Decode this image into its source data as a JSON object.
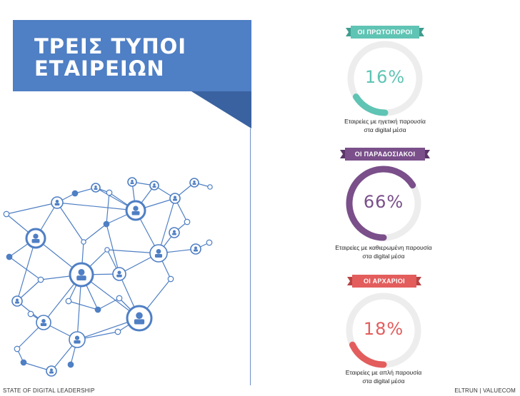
{
  "title": {
    "line1": "ΤΡΕΙΣ ΤΥΠΟΙ",
    "line2": "ΕΤΑΙΡΕΙΩΝ"
  },
  "colors": {
    "banner": "#4f7fc4",
    "banner_dark": "#3a62a0",
    "network": "#4f7fc4",
    "pioneers": "#5fc4b4",
    "traditional": "#7a4f8a",
    "archaic": "#e35d5d",
    "ring_track": "#ededed"
  },
  "categories": [
    {
      "label": "ΟΙ ΠΡΩΤΟΠΟΡΟΙ",
      "percent": 16,
      "percent_text": "16%",
      "desc1": "Εταιρείες με ηγετική παρουσία",
      "desc2": "στα digital μέσα"
    },
    {
      "label": "ΟΙ ΠΑΡΑΔΟΣΙΑΚΟΙ",
      "percent": 66,
      "percent_text": "66%",
      "desc1": "Εταιρείες με καθιερωμένη παρουσία",
      "desc2": "στα digital μέσα"
    },
    {
      "label": "ΟΙ ΑΡΧΑΡΙΟΙ",
      "percent": 18,
      "percent_text": "18%",
      "desc1": "Εταιρείες με απλή παρουσία",
      "desc2": "στα digital μέσα"
    }
  ],
  "footer": {
    "left": "STATE OF DIGITAL LEADERSHIP",
    "right": "ELTRUN | VALUECOM"
  }
}
